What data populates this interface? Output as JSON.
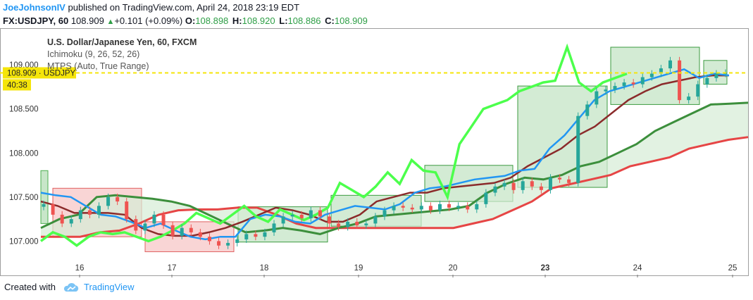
{
  "header": {
    "author": "JoeJohnsonIV",
    "published_text": "published on TradingView.com, April 24, 2018 23:19 EDT",
    "symbol": "FX:USDJPY, 60",
    "last_price": "108.909",
    "change_icon": "triangle-up-icon",
    "change": "+0.101 (+0.09%)",
    "o_label": "O:",
    "o_value": "108.898",
    "h_label": "H:",
    "h_value": "108.920",
    "l_label": "L:",
    "l_value": "108.886",
    "c_label": "C:",
    "c_value": "108.909"
  },
  "legend": {
    "title": "U.S. Dollar/Japanese Yen, 60, FXCM",
    "line2": "Ichimoku (9, 26, 52, 26)",
    "line3": "MTPS (Auto, True Range)"
  },
  "price_badge": {
    "label": "108.909 · USDJPY",
    "countdown": "40:38"
  },
  "footer": {
    "created_with": "Created with",
    "brand": "TradingView",
    "logo_icon": "tradingview-cloud-icon"
  },
  "colors": {
    "up": "#26a69a",
    "down": "#ef5350",
    "chikou": "#4cff4c",
    "tenkan": "#2196f3",
    "kijun": "#8b2b2b",
    "span_a": "#3c8f3c",
    "span_b": "#e64545",
    "cloud": "#d6ecd6",
    "box_green": "#4caf50",
    "box_red": "#e57373",
    "last_price_line": "#f5e50a"
  },
  "chart_data": {
    "type": "candlestick",
    "title": "U.S. Dollar/Japanese Yen, 60, FXCM",
    "xlabel": "",
    "ylabel": "",
    "x_ticks": [
      "16",
      "17",
      "18",
      "19",
      "20",
      "23",
      "24",
      "25"
    ],
    "y_ticks": [
      "107.000",
      "107.500",
      "108.000",
      "108.500",
      "109.000"
    ],
    "ylim": [
      106.62,
      109.4
    ],
    "grid": false,
    "last_price": 108.909,
    "series": [
      {
        "name": "Close (approx. hourly path)",
        "values": [
          107.42,
          107.3,
          107.2,
          107.25,
          107.35,
          107.3,
          107.4,
          107.5,
          107.45,
          107.25,
          107.12,
          107.2,
          107.3,
          107.18,
          107.06,
          107.15,
          107.1,
          107.05,
          107.0,
          106.95,
          106.98,
          107.02,
          107.08,
          107.05,
          107.1,
          107.2,
          107.28,
          107.3,
          107.26,
          107.35,
          107.28,
          107.2,
          107.16,
          107.22,
          107.18,
          107.2,
          107.28,
          107.35,
          107.4,
          107.38,
          107.36,
          107.4,
          107.35,
          107.42,
          107.38,
          107.4,
          107.36,
          107.42,
          107.55,
          107.62,
          107.66,
          107.58,
          107.68,
          107.62,
          107.58,
          107.72,
          107.7,
          107.66,
          108.42,
          108.55,
          108.7,
          108.72,
          108.76,
          108.8,
          108.78,
          108.86,
          108.9,
          108.96,
          109.05,
          108.6,
          108.64,
          108.78,
          108.85,
          108.9,
          108.909
        ]
      },
      {
        "name": "Chikou Span (approx.)",
        "values": [
          107.0,
          107.1,
          107.05,
          106.95,
          107.05,
          107.1,
          107.08,
          107.1,
          107.05,
          107.0,
          107.05,
          107.12,
          107.2,
          107.32,
          107.26,
          107.2,
          107.3,
          107.4,
          107.28,
          107.22,
          107.36,
          107.3,
          107.24,
          107.3,
          107.38,
          107.66,
          107.58,
          107.5,
          107.62,
          107.78,
          107.65,
          107.92,
          107.8,
          107.78,
          107.5,
          108.1,
          108.3,
          108.5,
          108.55,
          108.6,
          108.7,
          108.75,
          108.8,
          108.82,
          109.2,
          108.8,
          108.7,
          108.8,
          108.85,
          108.9
        ]
      },
      {
        "name": "Tenkan-sen (approx.)",
        "values": [
          107.55,
          107.52,
          107.5,
          107.4,
          107.3,
          107.28,
          107.22,
          107.15,
          107.2,
          107.12,
          107.05,
          107.02,
          107.05,
          107.05,
          107.25,
          107.3,
          107.28,
          107.22,
          107.2,
          107.3,
          107.35,
          107.4,
          107.38,
          107.36,
          107.42,
          107.55,
          107.6,
          107.62,
          107.66,
          107.7,
          107.72,
          107.74,
          107.8,
          107.82,
          108.05,
          108.2,
          108.4,
          108.6,
          108.7,
          108.75,
          108.8,
          108.85,
          108.9,
          108.95,
          108.85,
          108.9,
          108.88
        ]
      },
      {
        "name": "Kijun-sen (approx.)",
        "values": [
          107.45,
          107.4,
          107.32,
          107.32,
          107.32,
          107.3,
          107.15,
          107.08,
          107.06,
          107.06,
          107.1,
          107.15,
          107.22,
          107.3,
          107.38,
          107.35,
          107.3,
          107.22,
          107.22,
          107.3,
          107.45,
          107.5,
          107.55,
          107.55,
          107.6,
          107.62,
          107.64,
          107.66,
          107.72,
          107.85,
          107.95,
          108.05,
          108.2,
          108.3,
          108.45,
          108.6,
          108.7,
          108.78,
          108.82,
          108.86,
          108.88,
          108.88
        ]
      },
      {
        "name": "Senkou Span A (approx.)",
        "values": [
          107.15,
          107.25,
          107.3,
          107.5,
          107.52,
          107.5,
          107.48,
          107.45,
          107.4,
          107.3,
          107.2,
          107.1,
          107.12,
          107.15,
          107.12,
          107.08,
          107.15,
          107.2,
          107.28,
          107.3,
          107.32,
          107.34,
          107.36,
          107.4,
          107.55,
          107.65,
          107.72,
          107.7,
          107.75,
          107.85,
          107.9,
          108.0,
          108.1,
          108.25,
          108.35,
          108.45,
          108.55,
          108.56,
          108.57
        ]
      },
      {
        "name": "Senkou Span B (approx.)",
        "values": [
          107.05,
          107.05,
          107.05,
          107.1,
          107.12,
          107.2,
          107.3,
          107.35,
          107.36,
          107.36,
          107.38,
          107.38,
          107.3,
          107.2,
          107.15,
          107.15,
          107.15,
          107.15,
          107.15,
          107.15,
          107.15,
          107.15,
          107.2,
          107.25,
          107.35,
          107.45,
          107.6,
          107.65,
          107.7,
          107.75,
          107.85,
          107.9,
          107.95,
          108.05,
          108.1,
          108.15,
          108.18
        ]
      }
    ],
    "price_boxes": [
      {
        "color": "red",
        "from": 107.05,
        "to": 107.6
      },
      {
        "color": "red",
        "from": 106.88,
        "to": 107.22
      },
      {
        "color": "green",
        "from": 106.99,
        "to": 107.39
      },
      {
        "color": "green",
        "from": 107.17,
        "to": 107.52
      },
      {
        "color": "green",
        "from": 107.45,
        "to": 107.86
      },
      {
        "color": "green",
        "from": 107.61,
        "to": 108.76
      },
      {
        "color": "green",
        "from": 108.55,
        "to": 109.2
      },
      {
        "color": "green",
        "from": 108.78,
        "to": 109.05
      }
    ]
  }
}
